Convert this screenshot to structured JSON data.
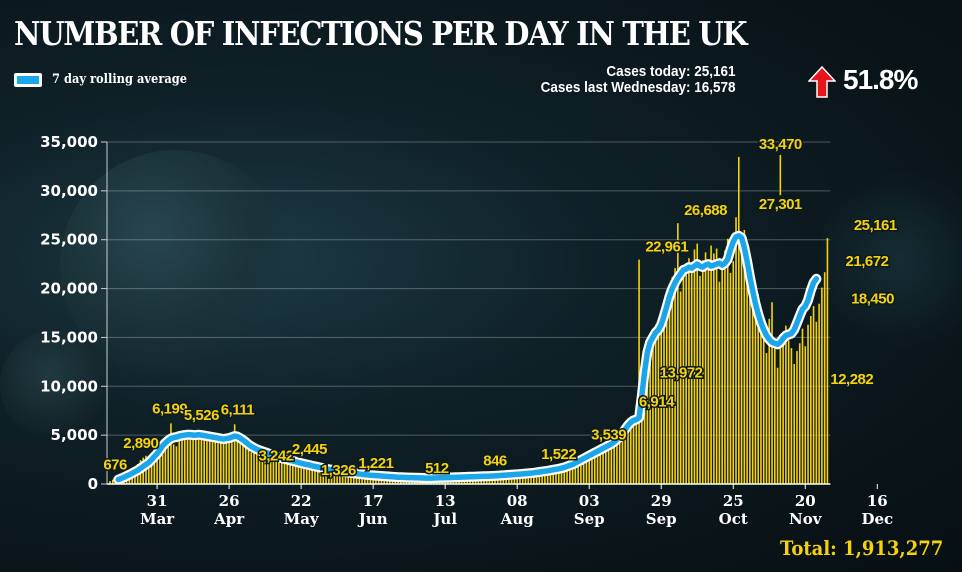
{
  "header": {
    "title": "NUMBER OF INFECTIONS PER DAY IN THE UK",
    "legend_label": "7 day rolling average",
    "cases_today": "Cases today: 25,161",
    "cases_last_wednesday": "Cases last Wednesday: 16,578",
    "change_pct": "51.8%",
    "change_icon": "arrow-up-icon",
    "total": "Total: 1,913,277"
  },
  "colors": {
    "bar": "#f5d20a",
    "line": "#1ba6ea",
    "line_outline": "#ffffff",
    "arrow": "#e8141b",
    "annotation": "#f5d20a"
  },
  "chart_data": {
    "type": "bar",
    "title": "NUMBER OF INFECTIONS PER DAY IN THE UK",
    "xlabel": "",
    "ylabel": "",
    "ylim": [
      0,
      35000
    ],
    "grid": true,
    "legend": {
      "entries": [
        "7 day rolling average"
      ],
      "placement": "top-left"
    },
    "y_ticks": [
      "0",
      "5,000",
      "10,000",
      "15,000",
      "20,000",
      "25,000",
      "30,000",
      "35,000"
    ],
    "y_tick_values": [
      0,
      5000,
      10000,
      15000,
      20000,
      25000,
      30000,
      35000
    ],
    "x_ticks": [
      {
        "day": 17,
        "day_label": "31",
        "month_label": "Mar"
      },
      {
        "day": 43,
        "day_label": "26",
        "month_label": "Apr"
      },
      {
        "day": 69,
        "day_label": "22",
        "month_label": "May"
      },
      {
        "day": 95,
        "day_label": "17",
        "month_label": "Jun"
      },
      {
        "day": 121,
        "day_label": "13",
        "month_label": "Jul"
      },
      {
        "day": 147,
        "day_label": "08",
        "month_label": "Aug"
      },
      {
        "day": 173,
        "day_label": "03",
        "month_label": "Sep"
      },
      {
        "day": 199,
        "day_label": "29",
        "month_label": "Sep"
      },
      {
        "day": 225,
        "day_label": "25",
        "month_label": "Oct"
      },
      {
        "day": 251,
        "day_label": "20",
        "month_label": "Nov"
      },
      {
        "day": 277,
        "day_label": "16",
        "month_label": "Dec"
      }
    ],
    "annotations": [
      {
        "label": "676",
        "day": 4,
        "value": 676
      },
      {
        "label": "2,890",
        "day": 14,
        "value": 2890
      },
      {
        "label": "6,199",
        "day": 23,
        "value": 6199
      },
      {
        "label": "5,526",
        "day": 33,
        "value": 5526
      },
      {
        "label": "6,111",
        "day": 46,
        "value": 6111
      },
      {
        "label": "3,242",
        "day": 52,
        "value": 3242
      },
      {
        "label": "2,445",
        "day": 72,
        "value": 2445
      },
      {
        "label": "1,326",
        "day": 81,
        "value": 1326
      },
      {
        "label": "1,221",
        "day": 96,
        "value": 1221
      },
      {
        "label": "512",
        "day": 118,
        "value": 512
      },
      {
        "label": "846",
        "day": 139,
        "value": 846
      },
      {
        "label": "1,522",
        "day": 162,
        "value": 1522
      },
      {
        "label": "3,539",
        "day": 180,
        "value": 3539
      },
      {
        "label": "6,914",
        "day": 198,
        "value": 6914
      },
      {
        "label": "22,961",
        "day": 201,
        "value": 22961
      },
      {
        "label": "13,972",
        "day": 204,
        "value": 13972
      },
      {
        "label": "26,688",
        "day": 215,
        "value": 26688
      },
      {
        "label": "33,470",
        "day": 242,
        "value": 33470
      },
      {
        "label": "27,301",
        "day": 242,
        "value": 27301
      },
      {
        "label": "12,282",
        "day": 266,
        "value": 12282
      },
      {
        "label": "21,672",
        "day": 274,
        "value": 21672
      },
      {
        "label": "18,450",
        "day": 276,
        "value": 18450
      },
      {
        "label": "25,161",
        "day": 277,
        "value": 25161
      }
    ],
    "series": [
      {
        "name": "Daily cases",
        "type": "bar",
        "values": [
          300,
          450,
          520,
          676,
          800,
          1000,
          1150,
          1300,
          1550,
          1700,
          2050,
          2450,
          2700,
          2890,
          2650,
          3050,
          3300,
          3650,
          4350,
          4600,
          4750,
          4450,
          6199,
          4050,
          3850,
          4750,
          5300,
          5000,
          5050,
          5100,
          4950,
          4700,
          5526,
          5200,
          5250,
          4800,
          4900,
          5300,
          4700,
          4600,
          4500,
          4400,
          4650,
          4300,
          5100,
          6111,
          4900,
          4800,
          4300,
          4000,
          3700,
          3242,
          3550,
          3400,
          3600,
          3400,
          3100,
          3300,
          3000,
          2950,
          2700,
          2600,
          2900,
          2550,
          2600,
          2700,
          2400,
          2250,
          2300,
          2150,
          2000,
          2445,
          1900,
          1800,
          1750,
          1700,
          1650,
          1600,
          1550,
          1500,
          1326,
          1400,
          1300,
          1250,
          1300,
          1200,
          1150,
          1200,
          1100,
          1150,
          1050,
          1000,
          1100,
          1000,
          980,
          1221,
          950,
          900,
          880,
          850,
          830,
          820,
          800,
          780,
          760,
          740,
          720,
          700,
          690,
          680,
          670,
          660,
          650,
          640,
          630,
          620,
          600,
          512,
          600,
          620,
          650,
          640,
          620,
          660,
          680,
          700,
          690,
          680,
          700,
          710,
          720,
          700,
          730,
          750,
          760,
          770,
          780,
          790,
          800,
          846,
          820,
          830,
          850,
          870,
          880,
          900,
          920,
          940,
          960,
          980,
          1000,
          1020,
          1050,
          1080,
          1100,
          1120,
          1150,
          1200,
          1250,
          1300,
          1350,
          1400,
          1450,
          1522,
          1600,
          1700,
          1800,
          1900,
          2000,
          2200,
          2400,
          2600,
          2900,
          3200,
          3539,
          3400,
          3600,
          3800,
          3900,
          4100,
          4300,
          4400,
          4600,
          4900,
          5200,
          5600,
          6000,
          6400,
          6914,
          6200,
          7100,
          22961,
          7200,
          12800,
          13972,
          14200,
          15400,
          14600,
          16000,
          17500,
          18300,
          19800,
          20500,
          21200,
          22100,
          26688,
          19700,
          21800,
          22500,
          23100,
          22700,
          24000,
          24600,
          21300,
          22900,
          23700,
          22000,
          24400,
          23600,
          24100,
          20700,
          22300,
          23900,
          25100,
          21600,
          22800,
          27301,
          33470,
          24500,
          26000,
          24400,
          22100,
          21800,
          20200,
          19400,
          17800,
          15200,
          13400,
          16900,
          18600,
          14500,
          11900,
          14800,
          15100,
          16200,
          14700,
          13900,
          12282,
          13600,
          14400,
          15900,
          14100,
          16300,
          17200,
          18200,
          16600,
          18450,
          20100,
          21672,
          25161
        ]
      },
      {
        "name": "7 day rolling average",
        "type": "line",
        "values": [
          null,
          null,
          null,
          450,
          560,
          680,
          820,
          950,
          1100,
          1250,
          1400,
          1600,
          1800,
          2000,
          2200,
          2500,
          2800,
          3100,
          3500,
          3900,
          4200,
          4450,
          4650,
          4750,
          4800,
          4900,
          4950,
          5000,
          5050,
          5050,
          5000,
          5000,
          5050,
          5000,
          4950,
          4900,
          4850,
          4800,
          4750,
          4700,
          4650,
          4600,
          4650,
          4700,
          4800,
          4900,
          4850,
          4700,
          4500,
          4300,
          4050,
          3850,
          3700,
          3550,
          3450,
          3350,
          3250,
          3150,
          3050,
          2950,
          2850,
          2750,
          2650,
          2580,
          2500,
          2420,
          2350,
          2280,
          2200,
          2130,
          2060,
          2000,
          1930,
          1860,
          1800,
          1740,
          1680,
          1620,
          1560,
          1500,
          1450,
          1400,
          1350,
          1300,
          1260,
          1220,
          1180,
          1140,
          1100,
          1060,
          1020,
          990,
          960,
          930,
          900,
          880,
          860,
          840,
          820,
          800,
          780,
          760,
          740,
          720,
          700,
          690,
          680,
          670,
          660,
          650,
          640,
          630,
          620,
          610,
          600,
          600,
          600,
          610,
          620,
          630,
          640,
          650,
          660,
          670,
          680,
          690,
          700,
          710,
          720,
          730,
          740,
          750,
          760,
          770,
          780,
          790,
          800,
          810,
          820,
          830,
          850,
          870,
          890,
          910,
          930,
          950,
          970,
          990,
          1010,
          1030,
          1060,
          1090,
          1120,
          1150,
          1190,
          1230,
          1270,
          1310,
          1350,
          1400,
          1450,
          1500,
          1560,
          1620,
          1700,
          1800,
          1900,
          2000,
          2150,
          2300,
          2450,
          2600,
          2750,
          2900,
          3050,
          3200,
          3350,
          3500,
          3650,
          3800,
          3950,
          4100,
          4300,
          4550,
          4850,
          5200,
          5600,
          6000,
          6300,
          6500,
          6600,
          6800,
          9000,
          11500,
          13500,
          14500,
          15000,
          15500,
          15800,
          16300,
          17200,
          18200,
          19200,
          20000,
          20600,
          21100,
          21500,
          21900,
          22000,
          22200,
          22100,
          22300,
          22500,
          22300,
          22200,
          22400,
          22500,
          22300,
          22400,
          22500,
          22600,
          22400,
          22600,
          23000,
          24000,
          24800,
          25300,
          25400,
          25200,
          24200,
          22800,
          21200,
          19800,
          18500,
          17400,
          16500,
          15800,
          15200,
          14800,
          14500,
          14400,
          14300,
          14500,
          14900,
          15200,
          15300,
          15400,
          15800,
          16500,
          17200,
          17900,
          18200,
          18800,
          19800,
          20600,
          21000
        ]
      }
    ]
  }
}
